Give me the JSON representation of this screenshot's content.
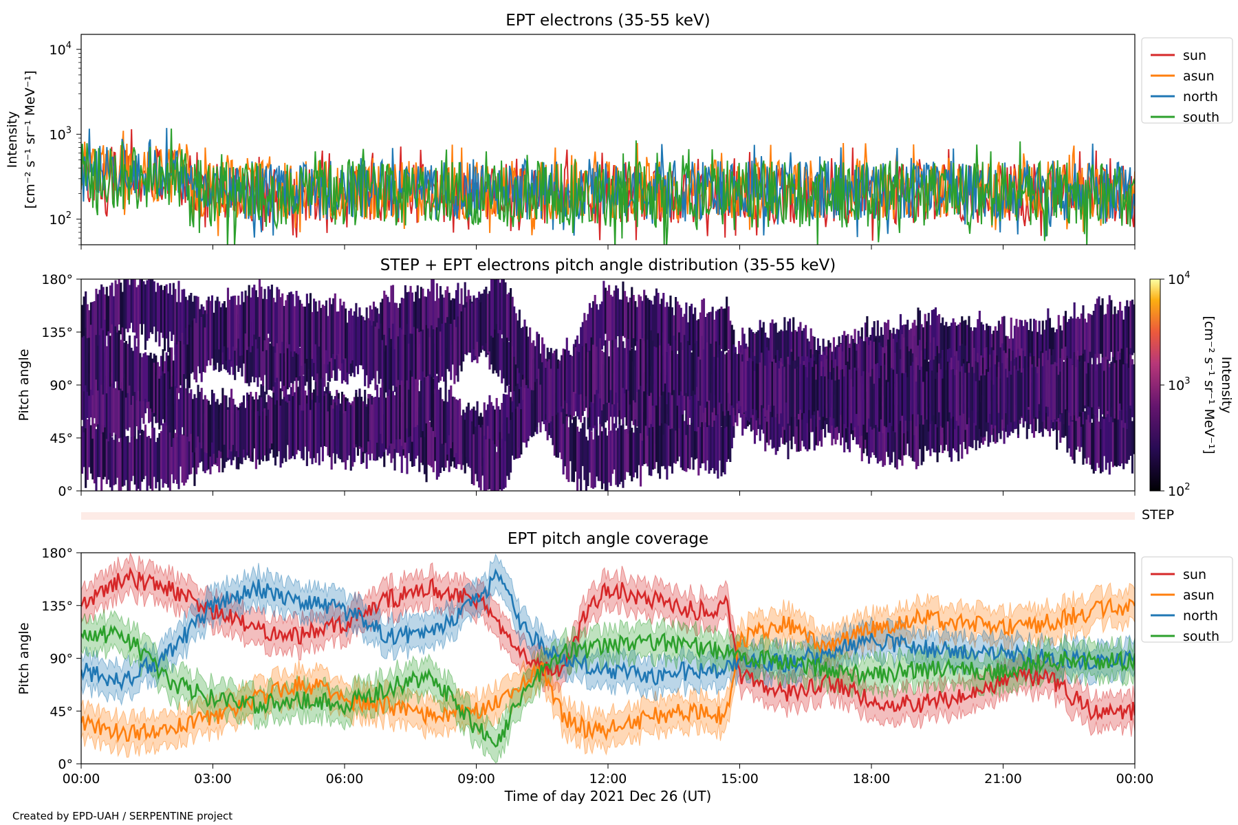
{
  "colors": {
    "sun": "#d62728",
    "asun": "#ff7f0e",
    "north": "#1f77b4",
    "south": "#2ca02c",
    "step_band": "#fdebe6"
  },
  "footer": "Created by EPD-UAH / SERPENTINE project",
  "xlabel": "Time of day 2021 Dec 26 (UT)",
  "xticks": [
    "00:00",
    "03:00",
    "06:00",
    "09:00",
    "12:00",
    "15:00",
    "18:00",
    "21:00",
    "00:00"
  ],
  "chart_data": [
    {
      "type": "line",
      "title": "EPT electrons (35-55 keV)",
      "ylabel_line1": "Intensity",
      "ylabel_line2": "[cm⁻² s⁻¹ sr⁻¹ MeV⁻¹]",
      "yscale": "log",
      "ylim": [
        50,
        15000
      ],
      "yticks": [
        {
          "value": 100,
          "base": "10",
          "exp": "2"
        },
        {
          "value": 1000,
          "base": "10",
          "exp": "3"
        },
        {
          "value": 10000,
          "base": "10",
          "exp": "4"
        }
      ],
      "xlim_hours": [
        0,
        24
      ],
      "legend_placement": "outside right",
      "series": [
        {
          "name": "sun",
          "typical": 200,
          "spread": 0.35
        },
        {
          "name": "asun",
          "typical": 220,
          "spread": 0.35
        },
        {
          "name": "north",
          "typical": 220,
          "spread": 0.35
        },
        {
          "name": "south",
          "typical": 200,
          "spread": 0.4
        }
      ]
    },
    {
      "type": "heatmap",
      "title": "STEP + EPT electrons pitch angle distribution (35-55 keV)",
      "ylabel": "Pitch angle",
      "ylim": [
        0,
        180
      ],
      "yticks": [
        "0°",
        "45°",
        "90°",
        "135°",
        "180°"
      ],
      "colorbar_label_line1": "Intensity",
      "colorbar_label_line2": "[cm⁻² s⁻¹ sr⁻¹ MeV⁻¹]",
      "colorbar_ticks": [
        {
          "value": 100,
          "base": "10",
          "exp": "2"
        },
        {
          "value": 1000,
          "base": "10",
          "exp": "3"
        },
        {
          "value": 10000,
          "base": "10",
          "exp": "4"
        }
      ],
      "zscale": "log",
      "zlim": [
        100,
        10000
      ]
    },
    {
      "type": "heatmap",
      "label": "STEP",
      "note": "empty band"
    },
    {
      "type": "line",
      "title": "EPT pitch angle coverage",
      "ylabel": "Pitch angle",
      "ylim": [
        0,
        180
      ],
      "yticks": [
        "0°",
        "45°",
        "90°",
        "135°",
        "180°"
      ],
      "xlim_hours": [
        0,
        24
      ],
      "legend_placement": "outside right",
      "band_halfwidth_deg": 14,
      "series": [
        {
          "name": "sun",
          "x": [
            0,
            1,
            2,
            3,
            4,
            5,
            6,
            7,
            8,
            9,
            9.5,
            10,
            10.5,
            11,
            11.5,
            12,
            13,
            14,
            14.7,
            15,
            16,
            17,
            18,
            19,
            20,
            21,
            22,
            23,
            24
          ],
          "y": [
            135,
            160,
            150,
            130,
            115,
            110,
            120,
            140,
            150,
            140,
            120,
            100,
            80,
            80,
            130,
            150,
            140,
            130,
            135,
            75,
            60,
            70,
            55,
            50,
            58,
            70,
            75,
            45,
            45
          ]
        },
        {
          "name": "asun",
          "x": [
            0,
            1,
            2,
            3,
            4,
            5,
            6,
            7,
            8,
            9,
            9.5,
            10,
            10.5,
            11,
            11.5,
            12,
            13,
            14,
            14.7,
            15,
            16,
            17,
            18,
            19,
            20,
            21,
            22,
            23,
            24
          ],
          "y": [
            35,
            25,
            30,
            40,
            55,
            70,
            55,
            50,
            40,
            45,
            55,
            70,
            80,
            40,
            30,
            30,
            40,
            45,
            40,
            105,
            120,
            100,
            115,
            125,
            120,
            115,
            120,
            130,
            135
          ]
        },
        {
          "name": "north",
          "x": [
            0,
            1,
            2,
            3,
            4,
            5,
            6,
            7,
            8,
            9,
            9.5,
            10,
            10.5,
            11,
            11.5,
            12,
            13,
            14,
            14.7,
            15,
            16,
            17,
            18,
            19,
            20,
            21,
            22,
            23,
            24
          ],
          "y": [
            80,
            70,
            95,
            135,
            150,
            140,
            130,
            110,
            110,
            140,
            160,
            120,
            100,
            90,
            85,
            80,
            75,
            80,
            80,
            90,
            85,
            95,
            105,
            100,
            95,
            95,
            90,
            88,
            90
          ]
        },
        {
          "name": "south",
          "x": [
            0,
            1,
            2,
            3,
            4,
            5,
            6,
            7,
            8,
            9,
            9.5,
            10,
            10.5,
            11,
            11.5,
            12,
            13,
            14,
            14.7,
            15,
            16,
            17,
            18,
            19,
            20,
            21,
            22,
            23,
            24
          ],
          "y": [
            110,
            110,
            70,
            55,
            50,
            55,
            50,
            65,
            75,
            30,
            20,
            55,
            80,
            95,
            98,
            100,
            105,
            100,
            95,
            90,
            88,
            80,
            75,
            80,
            80,
            78,
            88,
            88,
            88
          ]
        }
      ]
    }
  ]
}
